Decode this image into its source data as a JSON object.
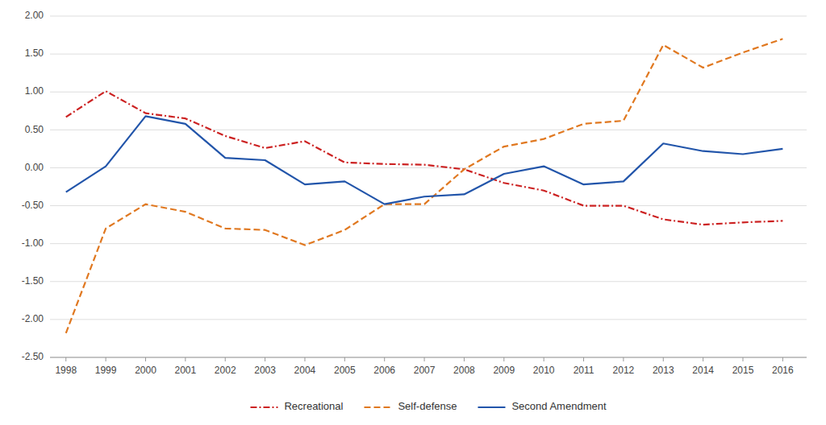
{
  "chart_data": {
    "type": "line",
    "x": [
      1998,
      1999,
      2000,
      2001,
      2002,
      2003,
      2004,
      2005,
      2006,
      2007,
      2008,
      2009,
      2010,
      2011,
      2012,
      2013,
      2014,
      2015,
      2016
    ],
    "xlim": [
      1997.6,
      2016.6
    ],
    "xticks": [
      1998,
      1999,
      2000,
      2001,
      2002,
      2003,
      2004,
      2005,
      2006,
      2007,
      2008,
      2009,
      2010,
      2011,
      2012,
      2013,
      2014,
      2015,
      2016
    ],
    "ylim": [
      -2.5,
      2.0
    ],
    "yticks": [
      {
        "value": -2.5,
        "label": "-2.50"
      },
      {
        "value": -2.0,
        "label": "-2.00"
      },
      {
        "value": -1.5,
        "label": "-1.50"
      },
      {
        "value": -1.0,
        "label": "-1.00"
      },
      {
        "value": -0.5,
        "label": "-0.50"
      },
      {
        "value": 0.0,
        "label": "0.00"
      },
      {
        "value": 0.5,
        "label": "0.50"
      },
      {
        "value": 1.0,
        "label": "1.00"
      },
      {
        "value": 1.5,
        "label": "1.50"
      },
      {
        "value": 2.0,
        "label": "2.00"
      }
    ],
    "grid": true,
    "legend": "bottom",
    "series": [
      {
        "name": "Recreational",
        "color": "#cc2222",
        "line_style": "dashdot",
        "values": [
          0.67,
          1.01,
          0.72,
          0.65,
          0.42,
          0.26,
          0.35,
          0.07,
          0.05,
          0.04,
          -0.02,
          -0.2,
          -0.3,
          -0.5,
          -0.5,
          -0.68,
          -0.75,
          -0.72,
          -0.7
        ]
      },
      {
        "name": "Self-defense",
        "color": "#e07820",
        "line_style": "dashed",
        "values": [
          -2.18,
          -0.8,
          -0.48,
          -0.58,
          -0.8,
          -0.82,
          -1.02,
          -0.82,
          -0.48,
          -0.48,
          -0.02,
          0.28,
          0.38,
          0.58,
          0.62,
          1.62,
          1.32,
          1.52,
          1.7
        ]
      },
      {
        "name": "Second Amendment",
        "color": "#2255aa",
        "line_style": "solid",
        "values": [
          -0.32,
          0.02,
          0.68,
          0.58,
          0.13,
          0.1,
          -0.22,
          -0.18,
          -0.48,
          -0.38,
          -0.35,
          -0.08,
          0.02,
          -0.22,
          -0.18,
          0.32,
          0.22,
          0.18,
          0.25
        ]
      }
    ]
  }
}
